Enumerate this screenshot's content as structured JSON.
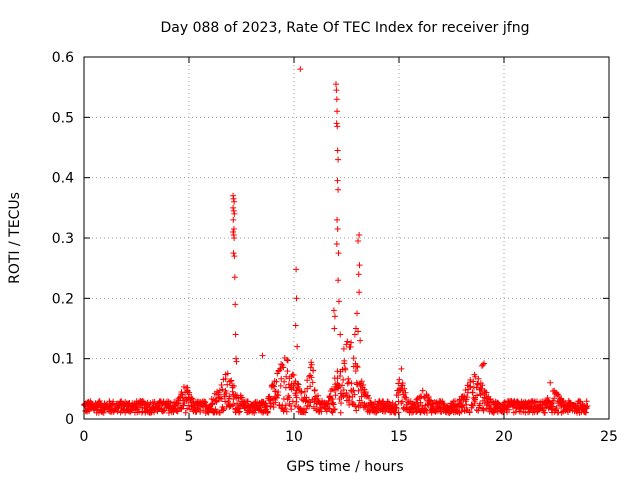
{
  "chart_data": {
    "type": "scatter",
    "title": "Day 088 of 2023, Rate Of TEC Index for receiver jfng",
    "xlabel": "GPS time / hours",
    "ylabel": "ROTI / TECUs",
    "xlim": [
      0,
      25
    ],
    "ylim": [
      0,
      0.6
    ],
    "xticks": [
      0,
      5,
      10,
      15,
      20,
      25
    ],
    "yticks": [
      0,
      0.1,
      0.2,
      0.3,
      0.4,
      0.5,
      0.6
    ],
    "xtick_labels": [
      "0",
      "5",
      "10",
      "15",
      "20",
      "25"
    ],
    "ytick_labels": [
      "0",
      "0.1",
      "0.2",
      "0.3",
      "0.4",
      "0.5",
      "0.6"
    ],
    "grid": true,
    "marker": "+",
    "color": "#ff0000",
    "series": [
      {
        "name": "ROTI",
        "background": {
          "x_range": [
            0,
            24
          ],
          "baseline_low": 0.01,
          "baseline_high": 0.03,
          "step": 0.05,
          "enhancements": [
            {
              "x0": 4.4,
              "x1": 5.2,
              "high": 0.06
            },
            {
              "x0": 6.0,
              "x1": 7.6,
              "high": 0.08
            },
            {
              "x0": 8.6,
              "x1": 10.6,
              "high": 0.11
            },
            {
              "x0": 10.4,
              "x1": 11.2,
              "high": 0.1
            },
            {
              "x0": 11.6,
              "x1": 13.6,
              "high": 0.14
            },
            {
              "x0": 14.8,
              "x1": 15.4,
              "high": 0.09
            },
            {
              "x0": 15.8,
              "x1": 16.6,
              "high": 0.05
            },
            {
              "x0": 17.8,
              "x1": 19.4,
              "high": 0.08
            },
            {
              "x0": 22.0,
              "x1": 22.8,
              "high": 0.05
            }
          ]
        },
        "points": [
          [
            7.1,
            0.37
          ],
          [
            7.12,
            0.365
          ],
          [
            7.15,
            0.36
          ],
          [
            7.1,
            0.35
          ],
          [
            7.13,
            0.345
          ],
          [
            7.16,
            0.34
          ],
          [
            7.11,
            0.33
          ],
          [
            7.14,
            0.315
          ],
          [
            7.1,
            0.31
          ],
          [
            7.13,
            0.305
          ],
          [
            7.15,
            0.3
          ],
          [
            7.12,
            0.275
          ],
          [
            7.16,
            0.27
          ],
          [
            7.18,
            0.235
          ],
          [
            7.2,
            0.19
          ],
          [
            7.22,
            0.14
          ],
          [
            7.24,
            0.1
          ],
          [
            7.26,
            0.095
          ],
          [
            8.5,
            0.105
          ],
          [
            10.3,
            0.58
          ],
          [
            10.1,
            0.248
          ],
          [
            10.12,
            0.2
          ],
          [
            10.08,
            0.155
          ],
          [
            10.15,
            0.12
          ],
          [
            12.0,
            0.555
          ],
          [
            12.02,
            0.545
          ],
          [
            12.04,
            0.53
          ],
          [
            12.05,
            0.51
          ],
          [
            12.03,
            0.49
          ],
          [
            12.06,
            0.485
          ],
          [
            12.08,
            0.445
          ],
          [
            12.1,
            0.43
          ],
          [
            12.07,
            0.395
          ],
          [
            12.1,
            0.38
          ],
          [
            12.05,
            0.33
          ],
          [
            12.08,
            0.315
          ],
          [
            12.04,
            0.29
          ],
          [
            12.12,
            0.275
          ],
          [
            12.1,
            0.23
          ],
          [
            12.14,
            0.195
          ],
          [
            11.9,
            0.18
          ],
          [
            11.95,
            0.17
          ],
          [
            11.92,
            0.15
          ],
          [
            12.2,
            0.14
          ],
          [
            13.1,
            0.305
          ],
          [
            13.05,
            0.295
          ],
          [
            13.12,
            0.255
          ],
          [
            13.08,
            0.24
          ],
          [
            13.1,
            0.21
          ],
          [
            13.0,
            0.175
          ],
          [
            12.95,
            0.15
          ],
          [
            13.05,
            0.145
          ],
          [
            12.9,
            0.14
          ],
          [
            13.15,
            0.13
          ],
          [
            19.0,
            0.09
          ],
          [
            19.05,
            0.092
          ],
          [
            18.95,
            0.088
          ],
          [
            22.2,
            0.06
          ]
        ]
      }
    ]
  }
}
